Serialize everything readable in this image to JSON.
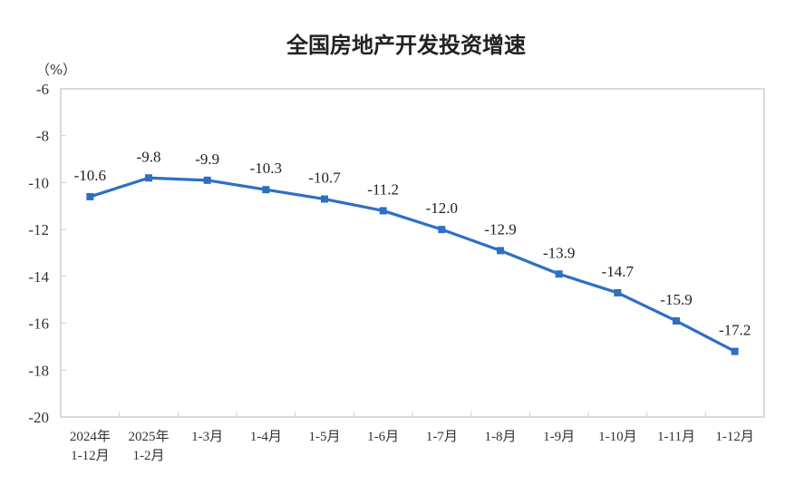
{
  "chart_data": {
    "type": "line",
    "title": "全国房地产开发投资增速",
    "ylabel": "（%）",
    "xlabel": "",
    "ylim": [
      -20,
      -6
    ],
    "yticks": [
      -6,
      -8,
      -10,
      -12,
      -14,
      -16,
      -18,
      -20
    ],
    "grid": false,
    "legend": null,
    "categories": [
      [
        "2024年",
        "1-12月"
      ],
      [
        "2025年",
        "1-2月"
      ],
      [
        "1-3月"
      ],
      [
        "1-4月"
      ],
      [
        "1-5月"
      ],
      [
        "1-6月"
      ],
      [
        "1-7月"
      ],
      [
        "1-8月"
      ],
      [
        "1-9月"
      ],
      [
        "1-10月"
      ],
      [
        "1-11月"
      ],
      [
        "1-12月"
      ]
    ],
    "series": [
      {
        "name": "全国房地产开发投资增速",
        "values": [
          -10.6,
          -9.8,
          -9.9,
          -10.3,
          -10.7,
          -11.2,
          -12.0,
          -12.9,
          -13.9,
          -14.7,
          -15.9,
          -17.2
        ],
        "labels": [
          "-10.6",
          "-9.8",
          "-9.9",
          "-10.3",
          "-10.7",
          "-11.2",
          "-12.0",
          "-12.9",
          "-13.9",
          "-14.7",
          "-15.9",
          "-17.2"
        ],
        "color": "#2e6fc4",
        "marker": "square"
      }
    ]
  },
  "colors": {
    "line": "#2e6fc4",
    "axis": "#cfcfcf",
    "text": "#333333"
  }
}
